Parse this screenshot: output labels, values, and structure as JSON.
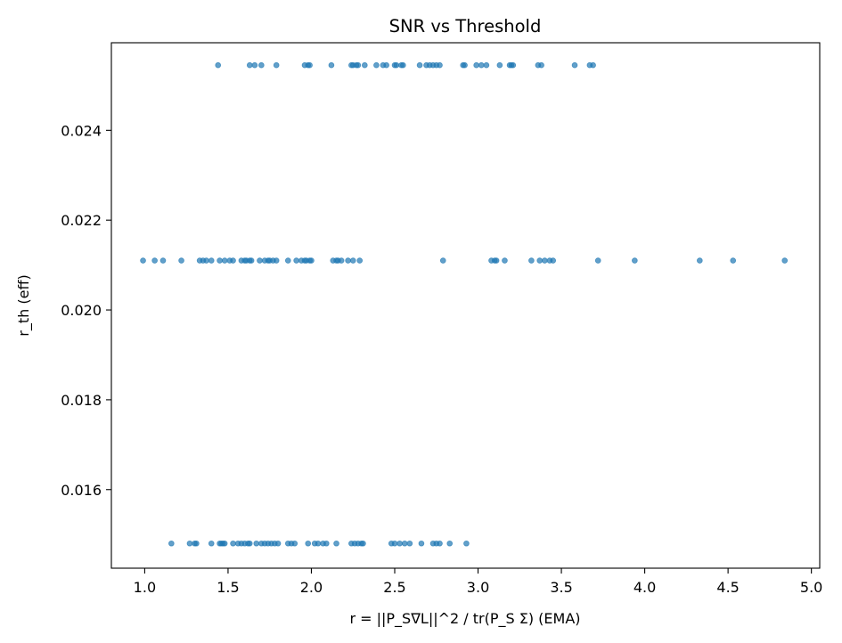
{
  "chart_data": {
    "type": "scatter",
    "title": "SNR vs Threshold",
    "xlabel": "r = ||P_S∇L||^2 / tr(P_S Σ) (EMA)",
    "ylabel": "r_th (eff)",
    "xlim": [
      0.8,
      5.05
    ],
    "ylim": [
      0.01425,
      0.02595
    ],
    "xticks": [
      1.0,
      1.5,
      2.0,
      2.5,
      3.0,
      3.5,
      4.0,
      4.5,
      5.0
    ],
    "xtick_labels": [
      "1.0",
      "1.5",
      "2.0",
      "2.5",
      "3.0",
      "3.5",
      "4.0",
      "4.5",
      "5.0"
    ],
    "yticks": [
      0.016,
      0.018,
      0.02,
      0.022,
      0.024
    ],
    "ytick_labels": [
      "0.016",
      "0.018",
      "0.020",
      "0.022",
      "0.024"
    ],
    "grid": false,
    "marker_color": "#1f77b4",
    "marker_alpha": 0.7,
    "series": [
      {
        "y": 0.02545,
        "x": [
          1.44,
          1.63,
          1.66,
          1.7,
          1.79,
          1.96,
          1.98,
          1.99,
          2.12,
          2.24,
          2.25,
          2.27,
          2.28,
          2.32,
          2.39,
          2.43,
          2.45,
          2.5,
          2.51,
          2.54,
          2.55,
          2.65,
          2.69,
          2.71,
          2.73,
          2.75,
          2.77,
          2.91,
          2.92,
          2.99,
          3.02,
          3.05,
          3.13,
          3.19,
          3.2,
          3.21,
          3.36,
          3.38,
          3.58,
          3.67,
          3.69
        ]
      },
      {
        "y": 0.0211,
        "x": [
          0.99,
          1.06,
          1.11,
          1.22,
          1.33,
          1.35,
          1.37,
          1.4,
          1.45,
          1.48,
          1.51,
          1.53,
          1.58,
          1.6,
          1.61,
          1.63,
          1.64,
          1.69,
          1.72,
          1.74,
          1.75,
          1.77,
          1.79,
          1.86,
          1.91,
          1.94,
          1.96,
          1.97,
          1.99,
          2.0,
          2.13,
          2.15,
          2.16,
          2.18,
          2.22,
          2.25,
          2.29,
          2.79,
          3.08,
          3.1,
          3.11,
          3.16,
          3.32,
          3.37,
          3.4,
          3.43,
          3.45,
          3.72,
          3.94,
          4.33,
          4.53,
          4.84
        ]
      },
      {
        "y": 0.0148,
        "x": [
          1.16,
          1.27,
          1.3,
          1.31,
          1.4,
          1.45,
          1.46,
          1.47,
          1.48,
          1.53,
          1.56,
          1.58,
          1.6,
          1.62,
          1.63,
          1.67,
          1.7,
          1.72,
          1.74,
          1.76,
          1.78,
          1.8,
          1.86,
          1.88,
          1.9,
          1.98,
          2.02,
          2.04,
          2.07,
          2.09,
          2.15,
          2.24,
          2.26,
          2.28,
          2.3,
          2.31,
          2.48,
          2.5,
          2.53,
          2.56,
          2.59,
          2.66,
          2.73,
          2.75,
          2.77,
          2.83,
          2.93
        ]
      }
    ]
  }
}
